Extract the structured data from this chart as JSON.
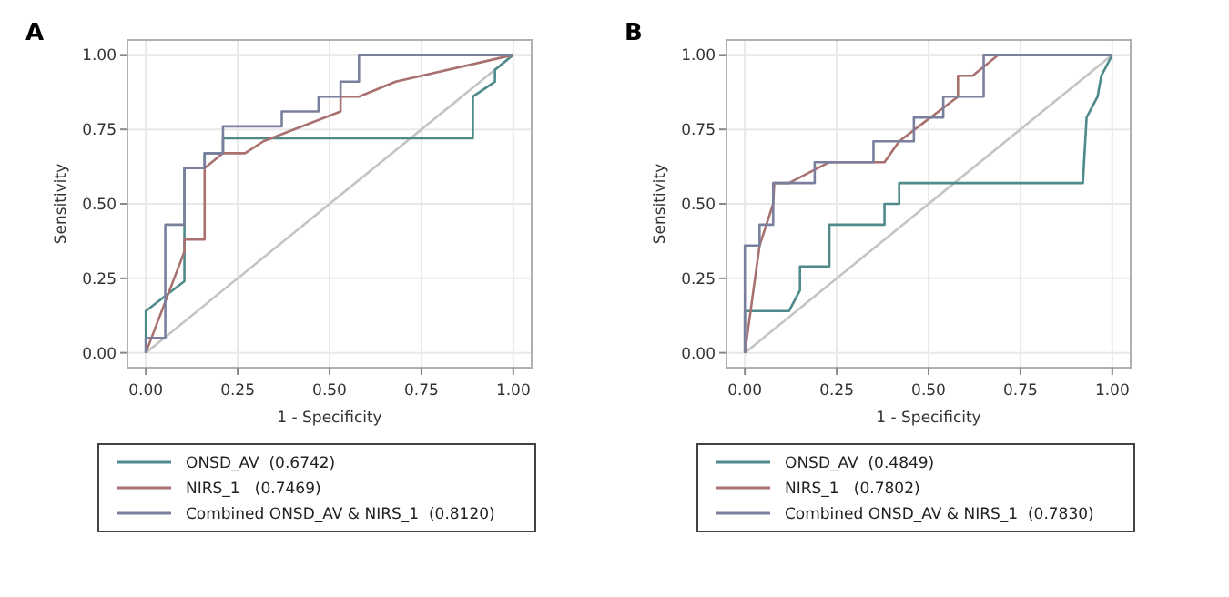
{
  "chart_data": [
    {
      "type": "line",
      "title": "A",
      "xlabel": "1 - Specificity",
      "ylabel": "Sensitivity",
      "xlim": [
        -0.05,
        1.05
      ],
      "ylim": [
        -0.05,
        1.05
      ],
      "xticks": [
        {
          "value": 0,
          "label": "0.00"
        },
        {
          "value": 0.25,
          "label": "0.25"
        },
        {
          "value": 0.5,
          "label": "0.50"
        },
        {
          "value": 0.75,
          "label": "0.75"
        },
        {
          "value": 1,
          "label": "1.00"
        }
      ],
      "yticks": [
        {
          "value": 0,
          "label": "0.00"
        },
        {
          "value": 0.25,
          "label": "0.25"
        },
        {
          "value": 0.5,
          "label": "0.50"
        },
        {
          "value": 0.75,
          "label": "0.75"
        },
        {
          "value": 1,
          "label": "1.00"
        }
      ],
      "grid": true,
      "legend": "bottom",
      "marker": "none",
      "line_style": "solid",
      "series": [
        {
          "color": "#c4c4c4",
          "x": [
            0,
            1
          ],
          "values": [
            0,
            1
          ]
        },
        {
          "name": "ONSD_AV  (0.6742)",
          "color": "#4f8a8b",
          "x": [
            0,
            0,
            0.105,
            0.105,
            0.16,
            0.16,
            0.21,
            0.21,
            0.89,
            0.89,
            0.95,
            0.95,
            1
          ],
          "values": [
            0,
            0.14,
            0.24,
            0.62,
            0.62,
            0.67,
            0.67,
            0.72,
            0.72,
            0.86,
            0.91,
            0.95,
            1
          ]
        },
        {
          "name": "NIRS_1   (0.7469)",
          "color": "#a8716f",
          "x": [
            0,
            0.105,
            0.105,
            0.16,
            0.16,
            0.21,
            0.27,
            0.32,
            0.53,
            0.53,
            0.58,
            0.68,
            1
          ],
          "values": [
            0,
            0.34,
            0.38,
            0.38,
            0.62,
            0.67,
            0.67,
            0.71,
            0.81,
            0.86,
            0.86,
            0.91,
            1
          ]
        },
        {
          "name": "Combined ONSD_AV & NIRS_1  (0.8120)",
          "color": "#7b7f9e",
          "x": [
            0,
            0,
            0.053,
            0.053,
            0.105,
            0.105,
            0.16,
            0.16,
            0.21,
            0.21,
            0.37,
            0.37,
            0.47,
            0.47,
            0.53,
            0.53,
            0.58,
            0.58,
            1
          ],
          "values": [
            0,
            0.05,
            0.05,
            0.43,
            0.43,
            0.62,
            0.62,
            0.67,
            0.67,
            0.76,
            0.76,
            0.81,
            0.81,
            0.86,
            0.86,
            0.91,
            0.91,
            1,
            1
          ]
        }
      ]
    },
    {
      "type": "line",
      "title": "B",
      "xlabel": "1 - Specificity",
      "ylabel": "Sensitivity",
      "xlim": [
        -0.05,
        1.05
      ],
      "ylim": [
        -0.05,
        1.05
      ],
      "xticks": [
        {
          "value": 0,
          "label": "0.00"
        },
        {
          "value": 0.25,
          "label": "0.25"
        },
        {
          "value": 0.5,
          "label": "0.50"
        },
        {
          "value": 0.75,
          "label": "0.75"
        },
        {
          "value": 1,
          "label": "1.00"
        }
      ],
      "yticks": [
        {
          "value": 0,
          "label": "0.00"
        },
        {
          "value": 0.25,
          "label": "0.25"
        },
        {
          "value": 0.5,
          "label": "0.50"
        },
        {
          "value": 0.75,
          "label": "0.75"
        },
        {
          "value": 1,
          "label": "1.00"
        }
      ],
      "grid": true,
      "legend": "bottom",
      "marker": "none",
      "line_style": "solid",
      "series": [
        {
          "color": "#c4c4c4",
          "x": [
            0,
            1
          ],
          "values": [
            0,
            1
          ]
        },
        {
          "name": "ONSD_AV  (0.4849)",
          "color": "#4f8a8b",
          "x": [
            0,
            0,
            0.12,
            0.15,
            0.15,
            0.23,
            0.23,
            0.38,
            0.38,
            0.42,
            0.42,
            0.92,
            0.93,
            0.96,
            0.97,
            1
          ],
          "values": [
            0,
            0.14,
            0.14,
            0.21,
            0.29,
            0.29,
            0.43,
            0.43,
            0.5,
            0.5,
            0.57,
            0.57,
            0.79,
            0.86,
            0.93,
            1
          ]
        },
        {
          "name": "NIRS_1   (0.7802)",
          "color": "#a8716f",
          "x": [
            0,
            0.04,
            0.077,
            0.08,
            0.12,
            0.23,
            0.38,
            0.42,
            0.58,
            0.58,
            0.62,
            0.69,
            1
          ],
          "values": [
            0,
            0.36,
            0.5,
            0.57,
            0.57,
            0.64,
            0.64,
            0.71,
            0.86,
            0.93,
            0.93,
            1,
            1
          ]
        },
        {
          "name": "Combined ONSD_AV & NIRS_1  (0.7830)",
          "color": "#7b7f9e",
          "x": [
            0,
            0,
            0.04,
            0.04,
            0.077,
            0.077,
            0.19,
            0.19,
            0.35,
            0.35,
            0.46,
            0.46,
            0.54,
            0.54,
            0.65,
            0.65,
            1
          ],
          "values": [
            0,
            0.36,
            0.36,
            0.43,
            0.43,
            0.57,
            0.57,
            0.64,
            0.64,
            0.71,
            0.71,
            0.79,
            0.79,
            0.86,
            0.86,
            1,
            1
          ]
        }
      ]
    }
  ]
}
